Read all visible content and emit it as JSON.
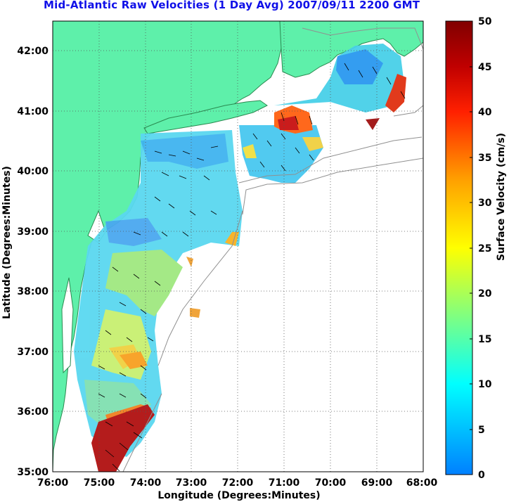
{
  "title": "Mid-Atlantic Raw Velocities (1 Day Avg) 2007/09/11 2200 GMT",
  "map": {
    "xlabel": "Longitude (Degrees:Minutes)",
    "ylabel": "Latitude (Degrees:Minutes)",
    "lon_ticks": [
      "76:00",
      "75:00",
      "74:00",
      "73:00",
      "72:00",
      "71:00",
      "70:00",
      "69:00",
      "68:00"
    ],
    "lat_ticks": [
      "42:00",
      "41:00",
      "40:00",
      "39:00",
      "38:00",
      "37:00",
      "36:00",
      "35:00"
    ],
    "lon_range": [
      -76,
      -68
    ],
    "lat_range": [
      35,
      42.5
    ],
    "land_color": "#5ef0aa",
    "grid": "dotted"
  },
  "colorbar": {
    "label": "Surface Velocity (cm/s)",
    "ticks": [
      "0",
      "5",
      "10",
      "15",
      "20",
      "25",
      "30",
      "35",
      "40",
      "45",
      "50"
    ],
    "range": [
      0,
      50
    ],
    "colormap": "jet"
  }
}
